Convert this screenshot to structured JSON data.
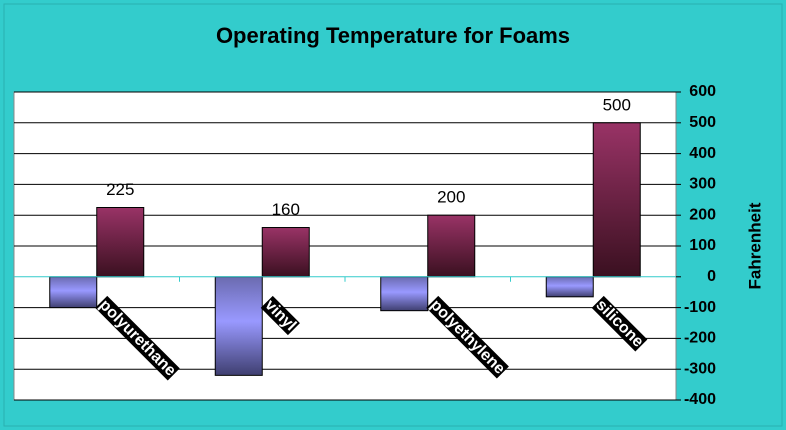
{
  "chart_data": {
    "type": "bar",
    "title": "Operating Temperature for Foams",
    "y_label": "Fahrenheit",
    "categories": [
      "polyurethane",
      "vinyl",
      "polyethylene",
      "silicone"
    ],
    "series": [
      {
        "color": "#9999ff",
        "values": [
          -100,
          -320,
          -110,
          -65
        ]
      },
      {
        "color": "#993366",
        "values": [
          225,
          160,
          200,
          500
        ],
        "data_labels": true
      }
    ],
    "ylim": [
      -400,
      600
    ],
    "yticks": [
      -400,
      -300,
      -200,
      -100,
      0,
      100,
      200,
      300,
      400,
      500,
      600
    ],
    "grid": true
  }
}
